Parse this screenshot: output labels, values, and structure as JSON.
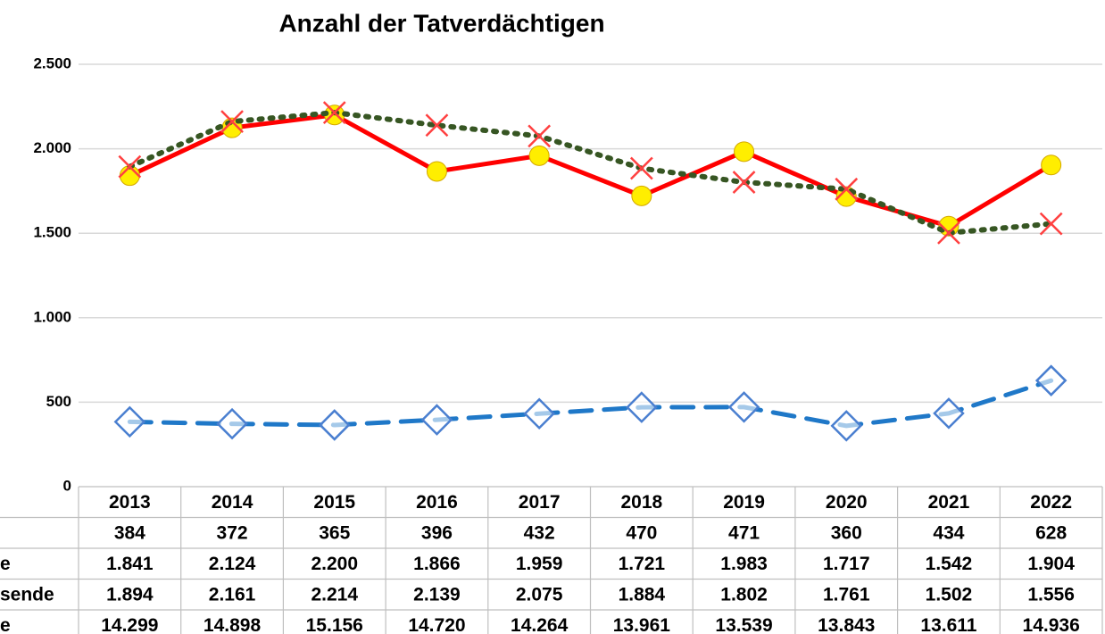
{
  "chart_data": {
    "type": "line",
    "title": "Anzahl der Tatverdächtigen",
    "categories": [
      "2013",
      "2014",
      "2015",
      "2016",
      "2017",
      "2018",
      "2019",
      "2020",
      "2021",
      "2022"
    ],
    "series": [
      {
        "color": "#1f78c8",
        "marker_color": "#4a7fd0",
        "style": "dashed",
        "marker": "diamond",
        "values": [
          384,
          372,
          365,
          396,
          432,
          470,
          471,
          360,
          434,
          628
        ],
        "value_labels": [
          "384",
          "372",
          "365",
          "396",
          "432",
          "470",
          "471",
          "360",
          "434",
          "628"
        ]
      },
      {
        "name": "e",
        "color": "#ff0000",
        "marker_color": "#ffee00",
        "style": "solid",
        "marker": "circle",
        "values": [
          1841,
          2124,
          2200,
          1866,
          1959,
          1721,
          1983,
          1717,
          1542,
          1904
        ],
        "value_labels": [
          "1.841",
          "2.124",
          "2.200",
          "1.866",
          "1.959",
          "1.721",
          "1.983",
          "1.717",
          "1.542",
          "1.904"
        ]
      },
      {
        "name": "sende",
        "color": "#375623",
        "marker_color": "#ff4040",
        "style": "dotted",
        "marker": "x",
        "values": [
          1894,
          2161,
          2214,
          2139,
          2075,
          1884,
          1802,
          1761,
          1502,
          1556
        ],
        "value_labels": [
          "1.894",
          "2.161",
          "2.214",
          "2.139",
          "2.075",
          "1.884",
          "1.802",
          "1.761",
          "1.502",
          "1.556"
        ]
      },
      {
        "name": "e",
        "values": [
          14299,
          14898,
          15156,
          14720,
          14264,
          13961,
          13539,
          13843,
          13611,
          14936
        ],
        "value_labels": [
          "14.299",
          "14.898",
          "15.156",
          "14.720",
          "14.264",
          "13.961",
          "13.539",
          "13.843",
          "13.611",
          "14.936"
        ]
      }
    ],
    "ylim": [
      0,
      2500
    ],
    "yticks": [
      0,
      500,
      {
        "value": 1000,
        "label": "1.000"
      },
      {
        "value": 1500,
        "label": "1.500"
      },
      {
        "value": 2000,
        "label": "2.000"
      },
      {
        "value": 2500,
        "label": "2.500"
      }
    ],
    "grid": true
  }
}
